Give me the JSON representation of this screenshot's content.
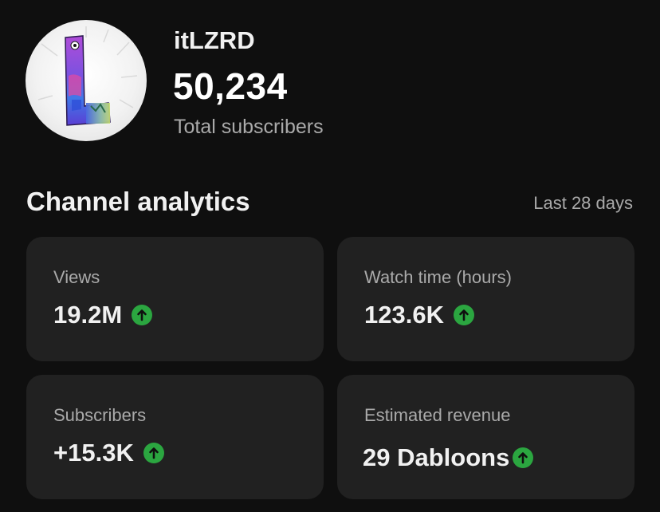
{
  "channel": {
    "name": "itLZRD",
    "subscriber_count": "50,234",
    "subscriber_label": "Total subscribers",
    "avatar_icon": "lizard-letter-l-avatar"
  },
  "analytics": {
    "title": "Channel analytics",
    "period": "Last 28 days",
    "cards": [
      {
        "label": "Views",
        "value": "19.2M",
        "trend": "up"
      },
      {
        "label": "Watch time (hours)",
        "value": "123.6K",
        "trend": "up"
      },
      {
        "label": "Subscribers",
        "value": "+15.3K",
        "trend": "up"
      },
      {
        "label": "Estimated revenue",
        "value": "29 Dabloons",
        "trend": "up"
      }
    ]
  },
  "colors": {
    "background": "#0f0f0f",
    "card": "#212121",
    "trend_up": "#2ba640",
    "primary_text": "#f1f1f1",
    "secondary_text": "#aaaaaa"
  },
  "icons": {
    "trend": "arrow-up-circle-icon"
  }
}
